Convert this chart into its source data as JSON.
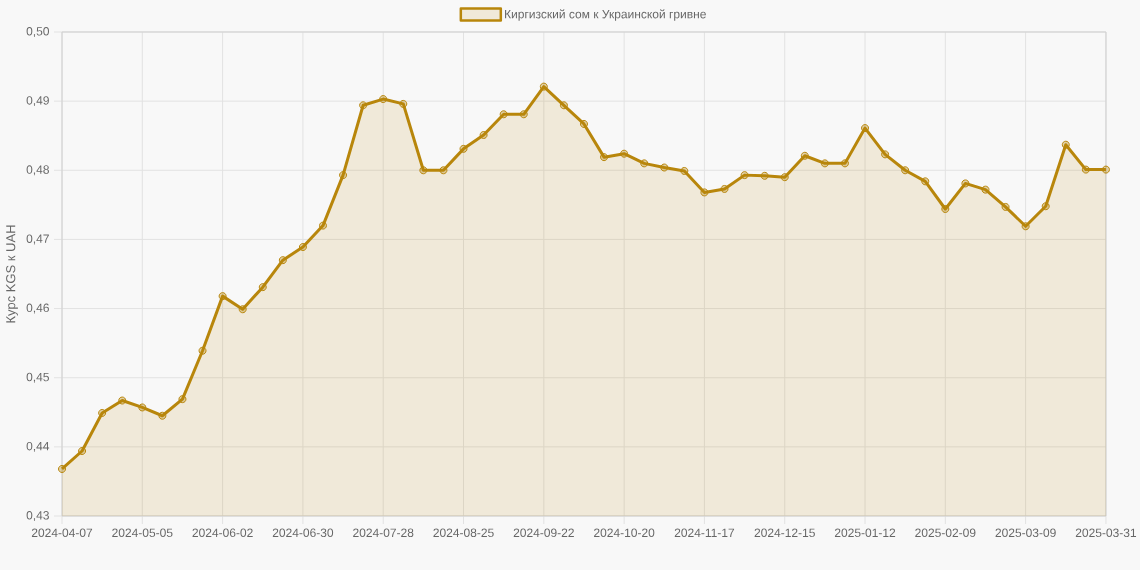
{
  "chart_data": {
    "type": "area",
    "ylabel": "Курс KGS к UAH",
    "legend": "top",
    "grid": true,
    "marker": "circle",
    "line_style": "solid",
    "categories": [
      "2024-04-07",
      null,
      null,
      null,
      "2024-05-05",
      null,
      null,
      null,
      "2024-06-02",
      null,
      null,
      null,
      "2024-06-30",
      null,
      null,
      null,
      "2024-07-28",
      null,
      null,
      null,
      "2024-08-25",
      null,
      null,
      null,
      "2024-09-22",
      null,
      null,
      null,
      "2024-10-20",
      null,
      null,
      null,
      "2024-11-17",
      null,
      null,
      null,
      "2024-12-15",
      null,
      null,
      null,
      "2025-01-12",
      null,
      null,
      null,
      "2025-02-09",
      null,
      null,
      null,
      "2025-03-09",
      null,
      null,
      null,
      "2025-03-31"
    ],
    "series": [
      {
        "name": "Киргизский сом к Украинской гривне",
        "color": "#b8860b",
        "values": [
          0.4368,
          0.4394,
          0.4449,
          0.4467,
          0.4457,
          0.4445,
          0.4469,
          0.4539,
          0.4618,
          0.4599,
          0.4631,
          0.467,
          0.4689,
          0.472,
          0.4793,
          0.4894,
          0.4903,
          0.4896,
          0.48,
          0.48,
          0.4831,
          0.4851,
          0.4881,
          0.4881,
          0.4921,
          0.4894,
          0.4867,
          0.4819,
          0.4824,
          0.481,
          0.4804,
          0.4799,
          0.4768,
          0.4773,
          0.4793,
          0.4792,
          0.479,
          0.4821,
          0.481,
          0.481,
          0.4861,
          0.4823,
          0.48,
          0.4784,
          0.4744,
          0.4781,
          0.4772,
          0.4747,
          0.4719,
          0.4748,
          0.4837,
          0.4801,
          0.4801
        ]
      }
    ],
    "ylim": [
      0.43,
      0.5
    ],
    "yticks": [
      {
        "value": 0.43,
        "label": "0,43"
      },
      {
        "value": 0.44,
        "label": "0,44"
      },
      {
        "value": 0.45,
        "label": "0,45"
      },
      {
        "value": 0.46,
        "label": "0,46"
      },
      {
        "value": 0.47,
        "label": "0,47"
      },
      {
        "value": 0.48,
        "label": "0,48"
      },
      {
        "value": 0.49,
        "label": "0,49"
      },
      {
        "value": 0.5,
        "label": "0,50"
      }
    ]
  }
}
